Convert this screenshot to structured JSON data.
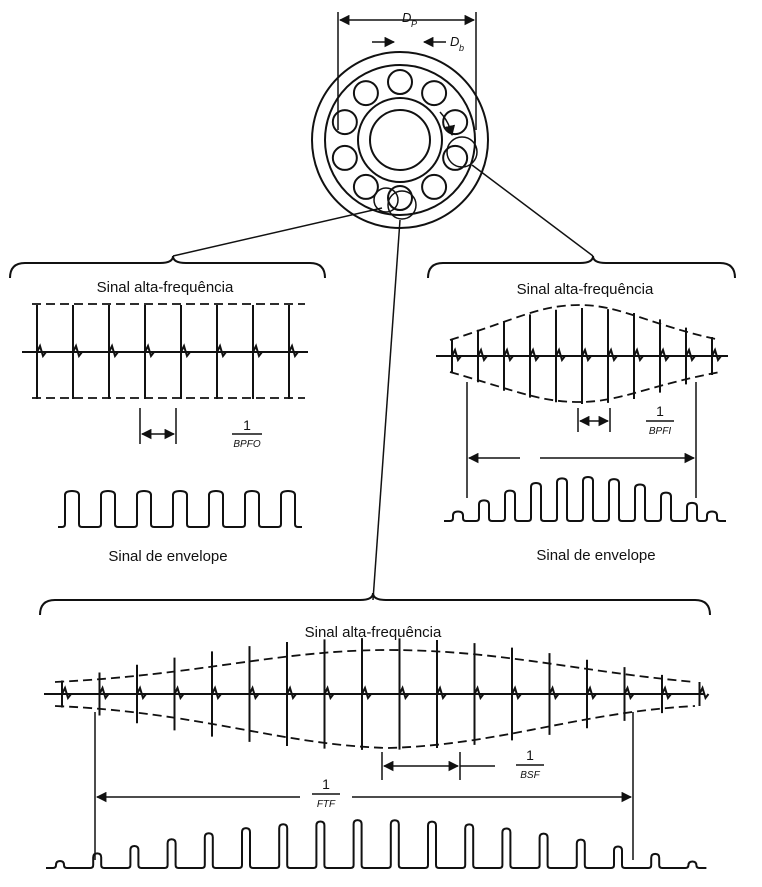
{
  "bearing": {
    "pitch_diameter_label": "D",
    "pitch_diameter_sub": "P",
    "ball_diameter_label": "D",
    "ball_diameter_sub": "b"
  },
  "outer_race": {
    "high_freq_title": "Sinal alta-frequência",
    "period_num": "1",
    "period_den": "BPFO",
    "envelope_title": "Sinal de envelope"
  },
  "inner_race": {
    "high_freq_title": "Sinal alta-frequência",
    "period_num": "1",
    "period_den": "BPFI",
    "envelope_title": "Sinal de envelope"
  },
  "ball": {
    "high_freq_title": "Sinal alta-frequência",
    "ball_period_num": "1",
    "ball_period_den": "BSF",
    "cage_period_num": "1",
    "cage_period_den": "FTF"
  },
  "colors": {
    "ink": "#111111",
    "background": "#ffffff"
  }
}
